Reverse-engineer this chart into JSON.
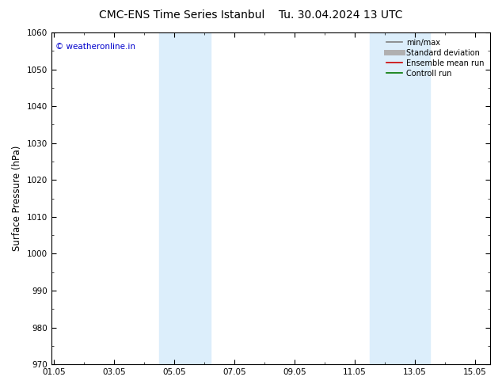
{
  "title": "CMC-ENS Time Series Istanbul",
  "title2": "Tu. 30.04.2024 13 UTC",
  "ylabel": "Surface Pressure (hPa)",
  "ylim": [
    970,
    1060
  ],
  "yticks": [
    970,
    980,
    990,
    1000,
    1010,
    1020,
    1030,
    1040,
    1050,
    1060
  ],
  "xtick_labels": [
    "01.05",
    "03.05",
    "05.05",
    "07.05",
    "09.05",
    "11.05",
    "13.05",
    "15.05"
  ],
  "xtick_positions": [
    0,
    2,
    4,
    6,
    8,
    10,
    12,
    14
  ],
  "xlim": [
    -0.1,
    14.5
  ],
  "shaded_bands": [
    {
      "xmin": 3.5,
      "xmax": 5.2,
      "color": "#dceefb"
    },
    {
      "xmin": 10.5,
      "xmax": 12.5,
      "color": "#dceefb"
    }
  ],
  "watermark": "© weatheronline.in",
  "watermark_color": "#0000cc",
  "background_color": "#ffffff",
  "legend_entries": [
    {
      "label": "min/max",
      "color": "#808080",
      "lw": 1.2,
      "ls": "-"
    },
    {
      "label": "Standard deviation",
      "color": "#b0b0b0",
      "lw": 5,
      "ls": "-"
    },
    {
      "label": "Ensemble mean run",
      "color": "#cc0000",
      "lw": 1.2,
      "ls": "-"
    },
    {
      "label": "Controll run",
      "color": "#007700",
      "lw": 1.2,
      "ls": "-"
    }
  ],
  "title_fontsize": 10,
  "tick_fontsize": 7.5,
  "ylabel_fontsize": 8.5,
  "watermark_fontsize": 7.5,
  "legend_fontsize": 7
}
